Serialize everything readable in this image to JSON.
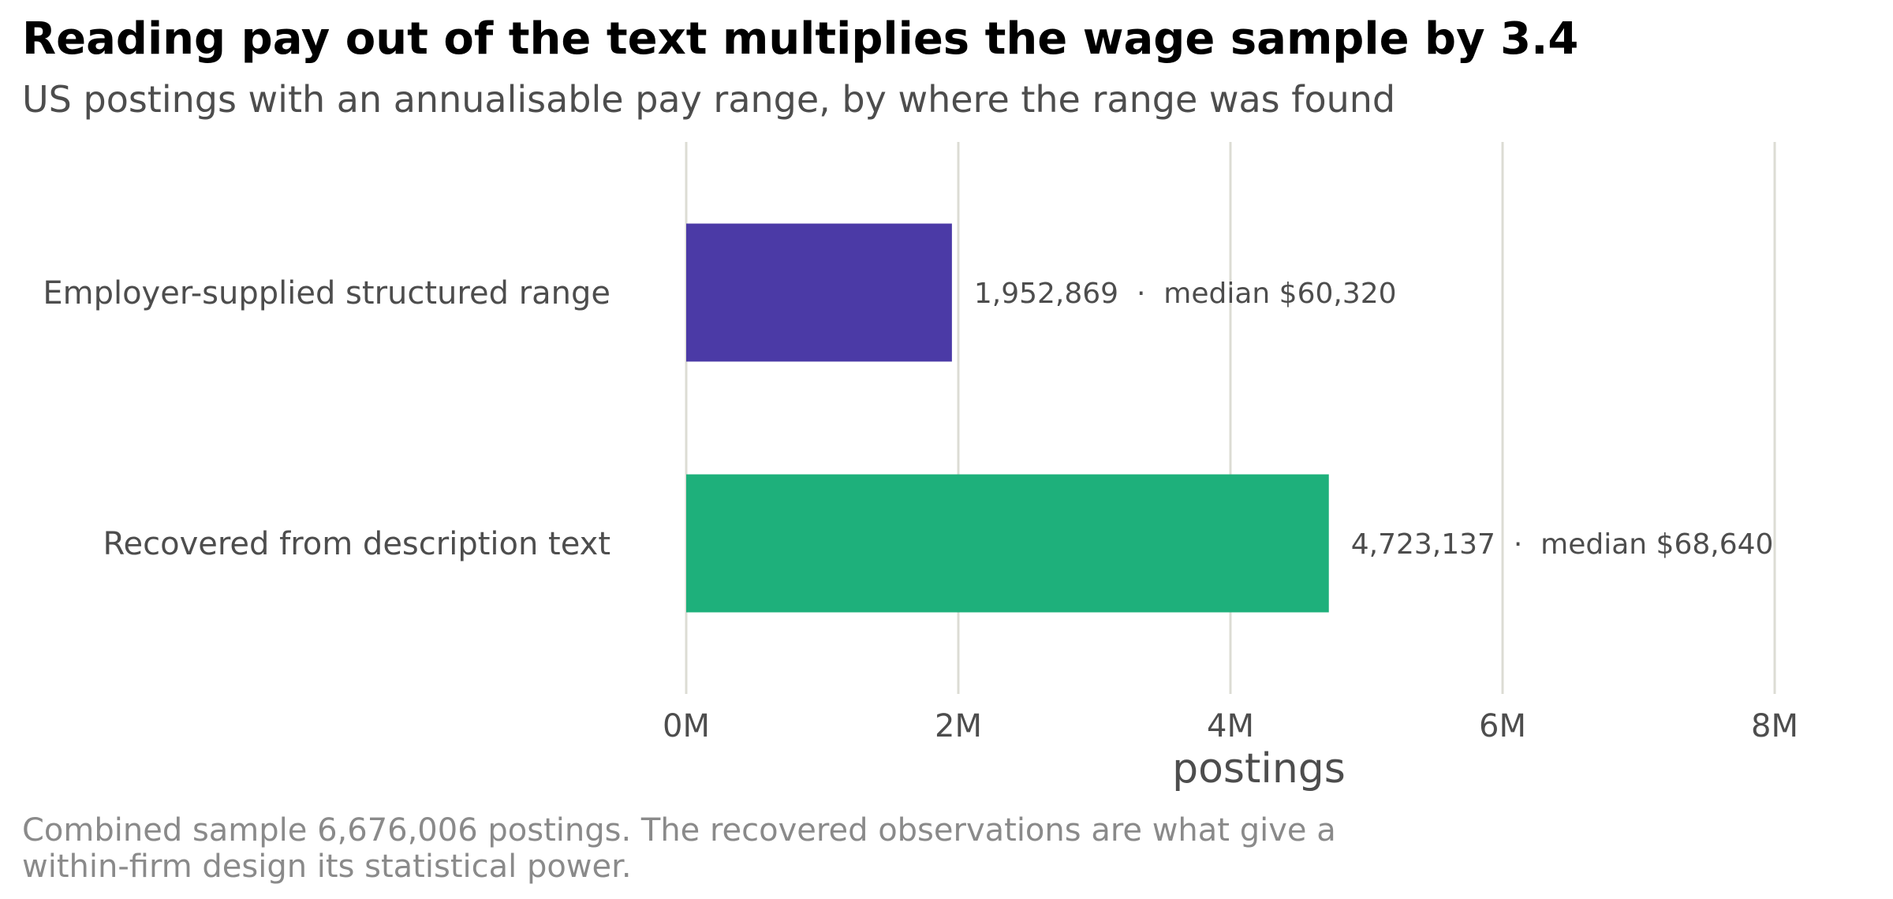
{
  "chart_data": {
    "type": "bar",
    "orientation": "horizontal",
    "title": "Reading pay out of the text multiplies the wage sample by 3.4",
    "subtitle": "US postings with an annualisable pay range, by where the range was found",
    "categories": [
      "Employer-supplied structured range",
      "Recovered from description text"
    ],
    "values": [
      1952869,
      4723137
    ],
    "data_labels": [
      "1,952,869  ·  median $60,320",
      "4,723,137  ·  median $68,640"
    ],
    "bar_colors": [
      "#4b3aa6",
      "#1eb07b"
    ],
    "xlabel": "postings",
    "ylabel": "",
    "xlim": [
      0,
      8000000
    ],
    "x_ticks": [
      0,
      2000000,
      4000000,
      6000000,
      8000000
    ],
    "x_tick_labels": [
      "0M",
      "2M",
      "4M",
      "6M",
      "8M"
    ],
    "grid": true,
    "legend": "none",
    "note_lines": [
      "Combined sample 6,676,006 postings. The recovered observations are what give a",
      "within-firm design its statistical power."
    ]
  }
}
